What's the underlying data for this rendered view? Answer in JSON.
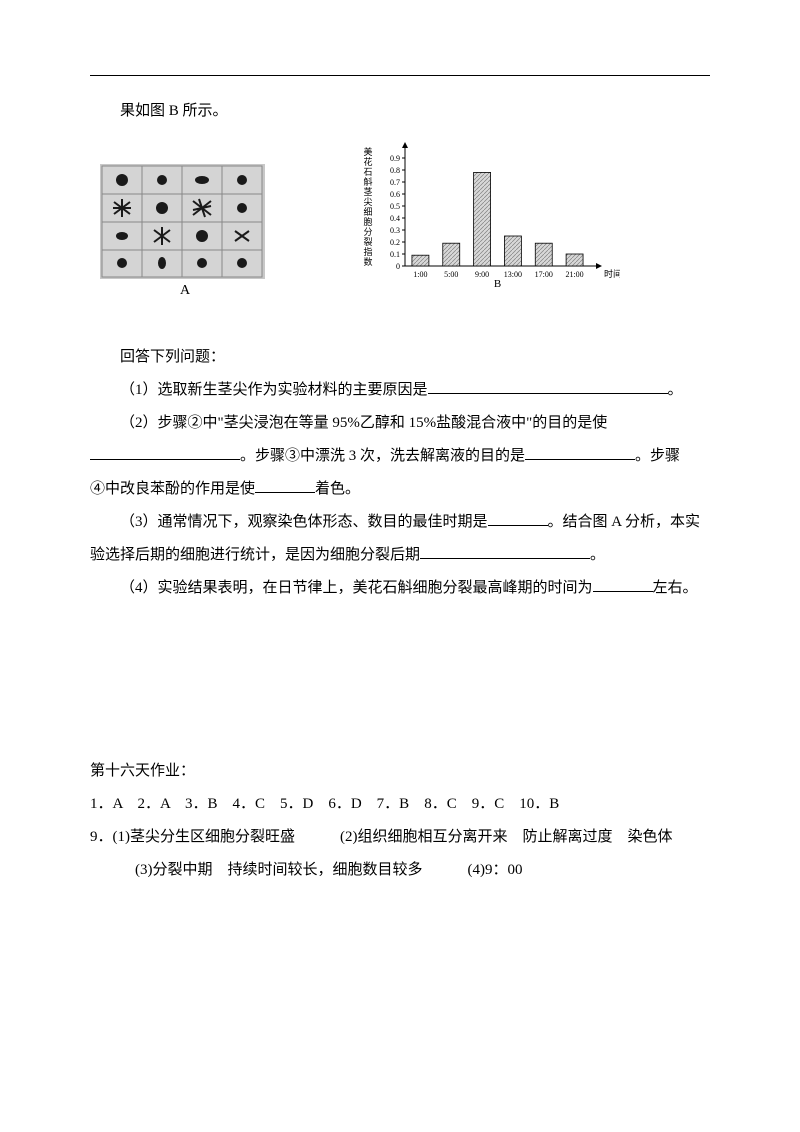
{
  "intro": "果如图 B 所示。",
  "figureA": {
    "label": "A",
    "cell_bg": "#c8c8c8",
    "cell_border": "#888888",
    "chromosome_color": "#1a1a1a"
  },
  "figureB": {
    "label": "B",
    "type": "bar",
    "y_label_vertical": "美花石斛茎尖细胞分裂指数",
    "x_label": "时间",
    "categories": [
      "1:00",
      "5:00",
      "9:00",
      "13:00",
      "17:00",
      "21:00"
    ],
    "values": [
      0.09,
      0.19,
      0.78,
      0.25,
      0.19,
      0.1
    ],
    "ylim": [
      0,
      1.0
    ],
    "yticks": [
      0,
      0.1,
      0.2,
      0.3,
      0.4,
      0.5,
      0.6,
      0.7,
      0.8,
      0.9
    ],
    "bar_fill": "#d8d8d8",
    "bar_hatch": "#808080",
    "axis_color": "#000000",
    "label_fontsize": 9,
    "tick_fontsize": 8
  },
  "questions": {
    "header": "回答下列问题：",
    "q1_a": "（1）选取新生茎尖作为实验材料的主要原因是",
    "q1_b": "。",
    "q2_a": "（2）步骤②中\"茎尖浸泡在等量 95%乙醇和 15%盐酸混合液中\"的目的是使",
    "q2_b": "。步骤③中漂洗 3 次，洗去解离液的目的是",
    "q2_c": "。步骤",
    "q2_d": "④中改良苯酚的作用是使",
    "q2_e": "着色。",
    "q3_a": "（3）通常情况下，观察染色体形态、数目的最佳时期是",
    "q3_b": "。结合图 A 分析，本实",
    "q3_c": "验选择后期的细胞进行统计，是因为细胞分裂后期",
    "q3_d": "。",
    "q4_a": "（4）实验结果表明，在日节律上，美花石斛细胞分裂最高峰期的时间为",
    "q4_b": "左右。"
  },
  "answers": {
    "title": "第十六天作业：",
    "mc": "1．A　2．A　3．B　4．C　5．D　6．D　7．B　8．C　9．C　10．B",
    "q9_1": "9．(1)茎尖分生区细胞分裂旺盛　　　(2)组织细胞相互分离开来　防止解离过度　染色体",
    "q9_2": "(3)分裂中期　持续时间较长，细胞数目较多　　　(4)9：00"
  }
}
